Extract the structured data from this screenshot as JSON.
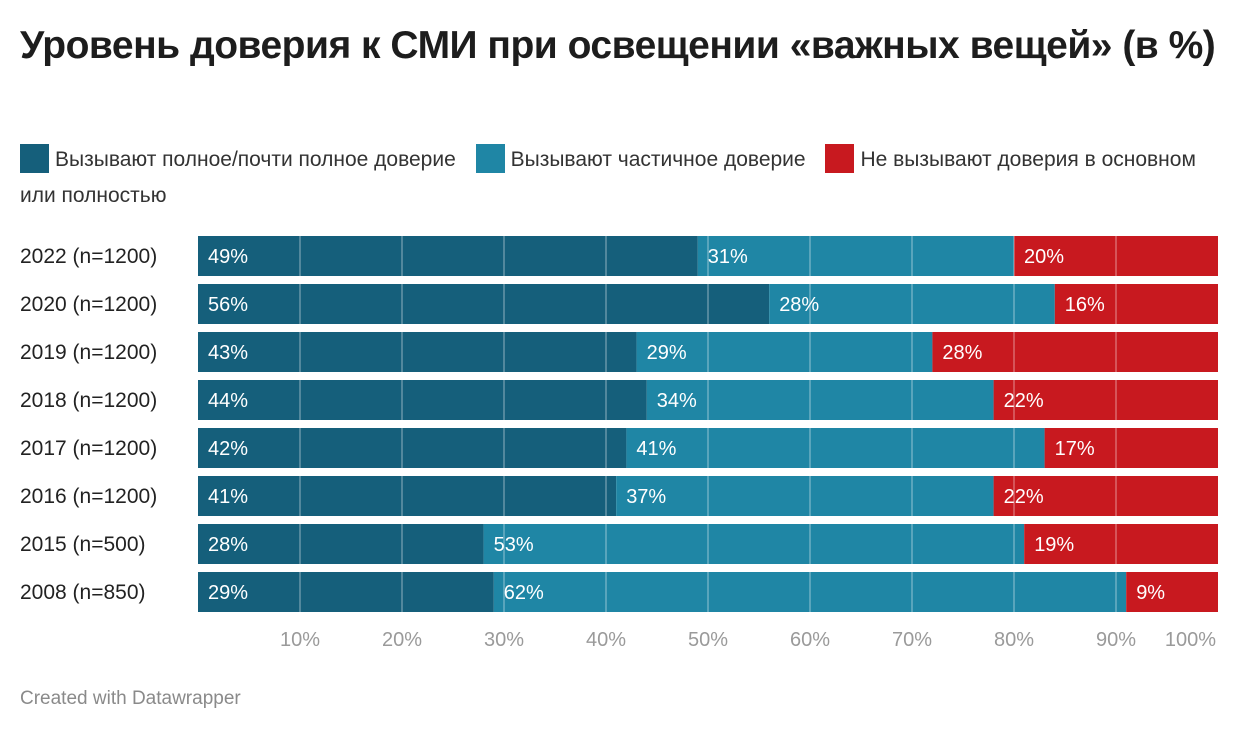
{
  "chart_data": {
    "type": "bar",
    "orientation": "horizontal",
    "stacked": true,
    "title": "Уровень доверия к СМИ при освещении «важных вещей» (в %)",
    "categories": [
      "2022 (n=1200)",
      "2020 (n=1200)",
      "2019 (n=1200)",
      "2018 (n=1200)",
      "2017 (n=1200)",
      "2016 (n=1200)",
      "2015 (n=500)",
      "2008 (n=850)"
    ],
    "series": [
      {
        "name": "Вызывают полное/почти полное доверие",
        "color": "#155f7b",
        "values": [
          49,
          56,
          43,
          44,
          42,
          41,
          28,
          29
        ],
        "labels": [
          "49%",
          "56%",
          "43%",
          "44%",
          "42%",
          "41%",
          "28%",
          "29%"
        ]
      },
      {
        "name": "Вызывают частичное доверие",
        "color": "#1f86a5",
        "values": [
          31,
          28,
          29,
          34,
          41,
          37,
          53,
          62
        ],
        "labels": [
          "31%",
          "28%",
          "29%",
          "34%",
          "41%",
          "37%",
          "53%",
          "62%"
        ]
      },
      {
        "name": "Не вызывают доверия в основном или полностью",
        "color": "#c8191f",
        "values": [
          20,
          16,
          28,
          22,
          17,
          22,
          19,
          9
        ],
        "labels": [
          "20%",
          "16%",
          "28%",
          "22%",
          "17%",
          "22%",
          "19%",
          "9%"
        ]
      }
    ],
    "xlim": [
      0,
      100
    ],
    "x_ticks": [
      10,
      20,
      30,
      40,
      50,
      60,
      70,
      80,
      90,
      100
    ],
    "x_tick_labels": [
      "10%",
      "20%",
      "30%",
      "40%",
      "50%",
      "60%",
      "70%",
      "80%",
      "90%",
      "100%"
    ],
    "grid": true,
    "legend_position": "top"
  },
  "footer": "Created with Datawrapper"
}
